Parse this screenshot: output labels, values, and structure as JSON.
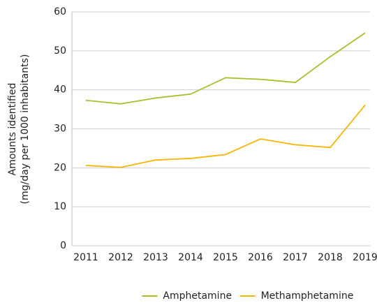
{
  "chart_data": {
    "type": "line",
    "ylabel": [
      "Amounts identified",
      "(mg/day per 1000 inhabitants)"
    ],
    "categories": [
      "2011",
      "2012",
      "2013",
      "2014",
      "2015",
      "2016",
      "2017",
      "2018",
      "2019"
    ],
    "series": [
      {
        "name": "Amphetamine",
        "color": "#a5c02a",
        "values": [
          37.3,
          36.4,
          37.9,
          38.9,
          43.1,
          42.7,
          41.9,
          48.5,
          54.6
        ]
      },
      {
        "name": "Methamphetamine",
        "color": "#f7b500",
        "values": [
          20.6,
          20.1,
          22.0,
          22.4,
          23.4,
          27.4,
          25.9,
          25.2,
          36.1
        ]
      }
    ],
    "ylim": [
      0,
      60
    ],
    "yticks": [
      0,
      10,
      20,
      30,
      40,
      50,
      60
    ],
    "grid": true,
    "legend": "bottom"
  }
}
